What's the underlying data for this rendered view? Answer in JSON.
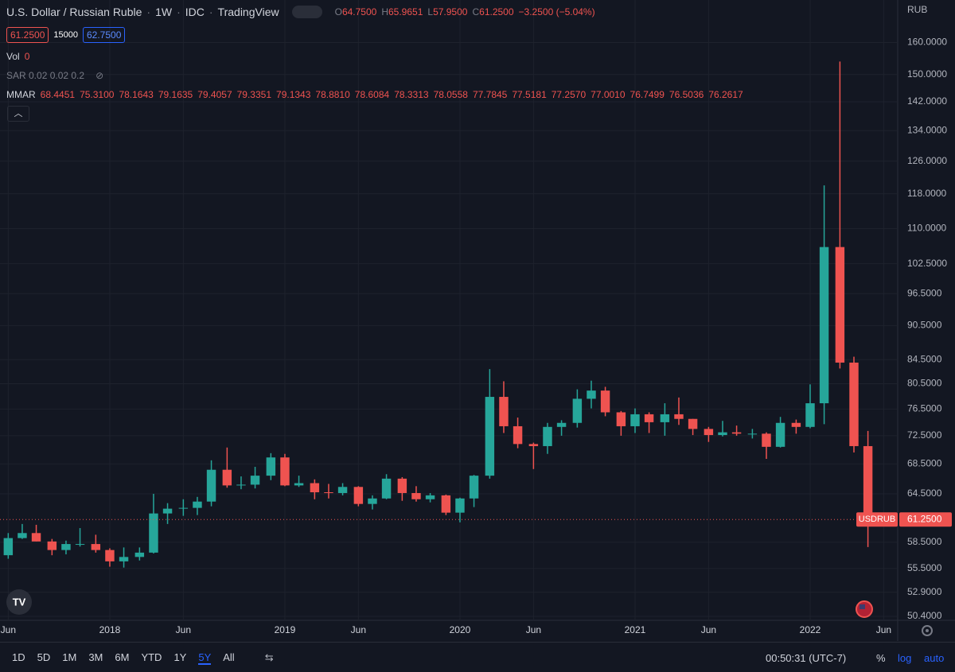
{
  "header": {
    "title": "U.S. Dollar / Russian Ruble",
    "interval": "1W",
    "source": "IDC",
    "platform": "TradingView",
    "ohlc": [
      {
        "key": "O",
        "value": "64.7500"
      },
      {
        "key": "H",
        "value": "65.9651"
      },
      {
        "key": "L",
        "value": "57.9500"
      },
      {
        "key": "C",
        "value": "61.2500"
      }
    ],
    "change": "−3.2500 (−5.04%)",
    "bid": "61.2500",
    "spread": "15000",
    "ask": "62.7500",
    "vol_label": "Vol",
    "vol_value": "0",
    "sar": "SAR 0.02 0.02 0.2",
    "mmar_label": "MMAR",
    "mmar_values": [
      "68.4451",
      "75.3100",
      "78.1643",
      "79.1635",
      "79.4057",
      "79.3351",
      "79.1343",
      "78.8810",
      "78.6084",
      "78.3313",
      "78.0558",
      "77.7845",
      "77.5181",
      "77.2570",
      "77.0010",
      "76.7499",
      "76.5036",
      "76.2617"
    ]
  },
  "chart_data": {
    "type": "candlestick",
    "currency": "RUB",
    "log_scale": true,
    "grid": true,
    "colors": {
      "up": "#26a69a",
      "down": "#ef5350"
    },
    "last_price_label": {
      "symbol": "USDRUB",
      "price": "61.2500"
    },
    "xlim": [
      2017.373,
      2022.5
    ],
    "xticks": [
      {
        "value": 2017.42,
        "label": "Jun"
      },
      2018,
      {
        "value": 2018.42,
        "label": "Jun"
      },
      2019,
      {
        "value": 2019.42,
        "label": "Jun"
      },
      2020,
      {
        "value": 2020.42,
        "label": "Jun"
      },
      2021,
      {
        "value": 2021.42,
        "label": "Jun"
      },
      2022,
      {
        "value": 2022.42,
        "label": "Jun"
      }
    ],
    "ylim": [
      50,
      174.3
    ],
    "yticks": [
      {
        "value": 160,
        "label": "160.0000"
      },
      {
        "value": 150,
        "label": "150.0000"
      },
      {
        "value": 142,
        "label": "142.0000"
      },
      {
        "value": 134,
        "label": "134.0000"
      },
      {
        "value": 126,
        "label": "126.0000"
      },
      {
        "value": 118,
        "label": "118.0000"
      },
      {
        "value": 110,
        "label": "110.0000"
      },
      {
        "value": 102.5,
        "label": "102.5000"
      },
      {
        "value": 96.5,
        "label": "96.5000"
      },
      {
        "value": 90.5,
        "label": "90.5000"
      },
      {
        "value": 84.5,
        "label": "84.5000"
      },
      {
        "value": 80.5,
        "label": "80.5000"
      },
      {
        "value": 76.5,
        "label": "76.5000"
      },
      {
        "value": 72.5,
        "label": "72.5000"
      },
      {
        "value": 68.5,
        "label": "68.5000"
      },
      {
        "value": 64.5,
        "label": "64.5000"
      },
      {
        "value": 58.5,
        "label": "58.5000"
      },
      {
        "value": 55.5,
        "label": "55.5000"
      },
      {
        "value": 52.9,
        "label": "52.9000"
      },
      {
        "value": 50.4,
        "label": "50.4000"
      }
    ],
    "x": [
      2017.42,
      2017.5,
      2017.58,
      2017.67,
      2017.75,
      2017.83,
      2017.92,
      2018.0,
      2018.08,
      2018.17,
      2018.25,
      2018.33,
      2018.42,
      2018.5,
      2018.58,
      2018.67,
      2018.75,
      2018.83,
      2018.92,
      2019.0,
      2019.08,
      2019.17,
      2019.25,
      2019.33,
      2019.42,
      2019.5,
      2019.58,
      2019.67,
      2019.75,
      2019.83,
      2019.92,
      2020.0,
      2020.08,
      2020.17,
      2020.25,
      2020.33,
      2020.42,
      2020.5,
      2020.58,
      2020.67,
      2020.75,
      2020.83,
      2020.92,
      2021.0,
      2021.08,
      2021.17,
      2021.25,
      2021.33,
      2021.42,
      2021.5,
      2021.58,
      2021.67,
      2021.75,
      2021.83,
      2021.92,
      2022.0,
      2022.08,
      2022.17,
      2022.25,
      2022.33
    ],
    "open": [
      57.0,
      59.0,
      59.6,
      58.6,
      57.6,
      58.3,
      58.3,
      57.6,
      56.3,
      56.8,
      57.3,
      62.0,
      62.6,
      62.7,
      63.5,
      67.7,
      65.6,
      65.7,
      66.9,
      69.4,
      65.6,
      65.9,
      64.7,
      64.6,
      65.4,
      63.2,
      63.9,
      66.5,
      64.6,
      63.8,
      64.3,
      62.1,
      63.9,
      66.9,
      78.4,
      73.9,
      71.3,
      71.0,
      73.8,
      74.4,
      78.1,
      79.4,
      76.0,
      73.9,
      75.7,
      74.5,
      75.7,
      75.0,
      73.5,
      72.6,
      73.0,
      72.8,
      72.8,
      70.9,
      74.4,
      73.8,
      77.4,
      106.0,
      84.0,
      71.0
    ],
    "high": [
      59.6,
      60.7,
      60.6,
      58.9,
      58.7,
      60.2,
      59.4,
      57.8,
      57.9,
      57.9,
      64.5,
      63.3,
      63.8,
      64.1,
      69.0,
      70.8,
      66.8,
      68.1,
      70.0,
      69.9,
      66.9,
      66.4,
      65.8,
      65.9,
      65.5,
      64.3,
      67.1,
      66.7,
      65.5,
      64.6,
      64.4,
      64.0,
      67.0,
      82.9,
      80.9,
      75.2,
      71.5,
      74.4,
      74.8,
      79.6,
      81.0,
      80.0,
      76.2,
      76.6,
      76.0,
      77.4,
      78.3,
      75.0,
      73.8,
      74.7,
      74.0,
      73.5,
      73.0,
      75.3,
      74.9,
      80.4,
      120.0,
      154.0,
      85.0,
      73.2
    ],
    "low": [
      56.6,
      58.9,
      58.6,
      57.0,
      57.1,
      58.0,
      57.3,
      55.7,
      55.6,
      56.4,
      57.2,
      60.7,
      61.7,
      61.8,
      62.9,
      65.3,
      65.1,
      65.2,
      66.3,
      65.5,
      65.4,
      63.8,
      63.9,
      64.3,
      62.9,
      62.5,
      63.8,
      63.6,
      63.5,
      63.4,
      61.8,
      60.9,
      62.8,
      66.5,
      72.9,
      70.7,
      67.8,
      69.9,
      72.5,
      73.7,
      76.6,
      75.4,
      72.5,
      72.9,
      72.9,
      72.5,
      74.1,
      72.6,
      71.6,
      72.4,
      72.5,
      72.1,
      69.2,
      70.8,
      72.8,
      73.6,
      74.2,
      83.0,
      70.1,
      57.95
    ],
    "close": [
      59.0,
      59.6,
      58.6,
      57.6,
      58.3,
      58.3,
      57.6,
      56.3,
      56.8,
      57.3,
      62.0,
      62.6,
      62.7,
      63.5,
      67.7,
      65.6,
      65.7,
      66.9,
      69.4,
      65.6,
      65.9,
      64.7,
      64.6,
      65.4,
      63.2,
      63.9,
      66.5,
      64.6,
      63.8,
      64.3,
      62.1,
      63.9,
      66.9,
      78.4,
      73.9,
      71.3,
      71.0,
      73.8,
      74.4,
      78.1,
      79.4,
      76.0,
      73.9,
      75.7,
      74.5,
      75.7,
      75.0,
      73.5,
      72.6,
      73.0,
      72.8,
      72.8,
      70.9,
      74.4,
      73.8,
      77.4,
      106.0,
      84.0,
      71.0,
      61.25
    ]
  },
  "toolbar": {
    "ranges": [
      {
        "label": "1D"
      },
      {
        "label": "5D"
      },
      {
        "label": "1M"
      },
      {
        "label": "3M"
      },
      {
        "label": "6M"
      },
      {
        "label": "YTD"
      },
      {
        "label": "1Y"
      },
      {
        "label": "5Y",
        "active": true
      },
      {
        "label": "All"
      }
    ],
    "clock": "00:50:31 (UTC-7)",
    "percent": "%",
    "log": "log",
    "auto": "auto"
  }
}
